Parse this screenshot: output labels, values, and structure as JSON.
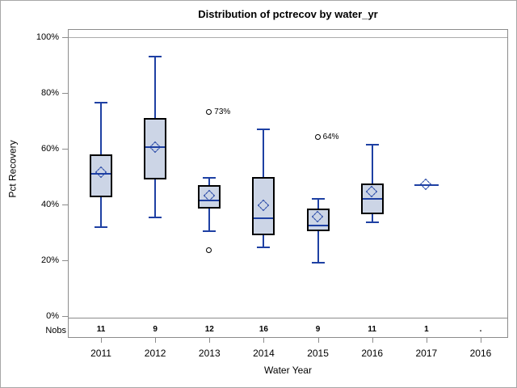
{
  "chart_data": {
    "type": "boxplot",
    "title": "Distribution of pctrecov by water_yr",
    "xlabel": "Water Year",
    "ylabel": "Pct Recovery",
    "nobs_label": "Nobs",
    "ylim": [
      0,
      100
    ],
    "yticks": [
      {
        "value": 100,
        "label": "100%"
      },
      {
        "value": 80,
        "label": "80%"
      },
      {
        "value": 60,
        "label": "60%"
      },
      {
        "value": 40,
        "label": "40%"
      },
      {
        "value": 20,
        "label": "20%"
      },
      {
        "value": 0,
        "label": "0%"
      }
    ],
    "categories": [
      "2011",
      "2012",
      "2013",
      "2014",
      "2015",
      "2016",
      "2017",
      "2016"
    ],
    "nobs": [
      "11",
      "9",
      "12",
      "16",
      "9",
      "11",
      "1",
      "."
    ],
    "boxes": [
      {
        "year": "2011",
        "nobs": "11",
        "stats": {
          "whisker_low": 32,
          "q1": 42.5,
          "median": 51,
          "mean": 51.5,
          "q3": 58,
          "whisker_high": 76.5
        },
        "outliers": []
      },
      {
        "year": "2012",
        "nobs": "9",
        "stats": {
          "whisker_low": 35.5,
          "q1": 49,
          "median": 60.5,
          "mean": 60.5,
          "q3": 71,
          "whisker_high": 93
        },
        "outliers": []
      },
      {
        "year": "2013",
        "nobs": "12",
        "stats": {
          "whisker_low": 30.5,
          "q1": 38.5,
          "median": 41.5,
          "mean": 43,
          "q3": 47,
          "whisker_high": 49.5
        },
        "outliers": [
          {
            "value": 73,
            "label": "73%"
          },
          {
            "value": 23.5,
            "label": ""
          }
        ]
      },
      {
        "year": "2014",
        "nobs": "16",
        "stats": {
          "whisker_low": 24.5,
          "q1": 29,
          "median": 35,
          "mean": 39.5,
          "q3": 50,
          "whisker_high": 67
        },
        "outliers": []
      },
      {
        "year": "2015",
        "nobs": "9",
        "stats": {
          "whisker_low": 19,
          "q1": 30.5,
          "median": 32.5,
          "mean": 35.5,
          "q3": 38.5,
          "whisker_high": 42
        },
        "outliers": [
          {
            "value": 64,
            "label": "64%"
          }
        ]
      },
      {
        "year": "2016",
        "nobs": "11",
        "stats": {
          "whisker_low": 33.5,
          "q1": 36.5,
          "median": 42,
          "mean": 44.5,
          "q3": 47.5,
          "whisker_high": 61.5
        },
        "outliers": []
      },
      {
        "year": "2017",
        "nobs": "1",
        "single_value": 47,
        "outliers": []
      },
      {
        "year": "2016",
        "nobs": ".",
        "empty": true,
        "outliers": []
      }
    ],
    "colors": {
      "box_fill": "#ccd5e6",
      "box_border": "#000000",
      "line": "#1e40a3",
      "axis": "#8c8c8c",
      "reference_line": "#ababab",
      "outlier": "#000000",
      "text": "#000000"
    }
  }
}
